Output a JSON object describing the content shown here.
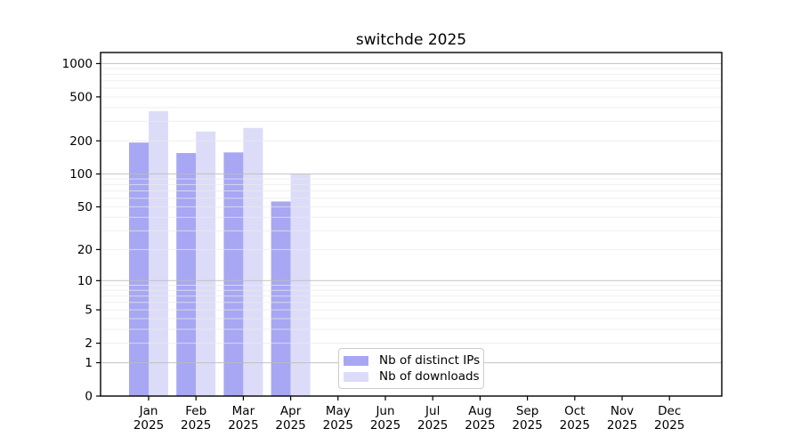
{
  "title": "switchde 2025",
  "chart_data": {
    "type": "bar",
    "title": "switchde 2025",
    "categories": [
      "Jan 2025",
      "Feb 2025",
      "Mar 2025",
      "Apr 2025",
      "May 2025",
      "Jun 2025",
      "Jul 2025",
      "Aug 2025",
      "Sep 2025",
      "Oct 2025",
      "Nov 2025",
      "Dec 2025"
    ],
    "series": [
      {
        "name": "Nb of distinct IPs",
        "color": "#a7a7f3",
        "values": [
          193,
          155,
          157,
          56,
          0,
          0,
          0,
          0,
          0,
          0,
          0,
          0
        ]
      },
      {
        "name": "Nb of downloads",
        "color": "#dcdcf9",
        "values": [
          371,
          243,
          262,
          100,
          0,
          0,
          0,
          0,
          0,
          0,
          0,
          0
        ]
      }
    ],
    "xlabel": "",
    "ylabel": "",
    "yscale": "log1p",
    "ylim": [
      0,
      1260
    ],
    "yticks": [
      1000,
      500,
      200,
      100,
      50,
      20,
      10,
      5,
      2,
      1,
      0
    ],
    "grid": "horizontal-log",
    "legend_position": "inside-bottom-center",
    "colors": {
      "spine": "#000000",
      "major_grid": "#bdbdbd",
      "minor_grid": "#e9e9e9",
      "background": "#ffffff"
    }
  }
}
